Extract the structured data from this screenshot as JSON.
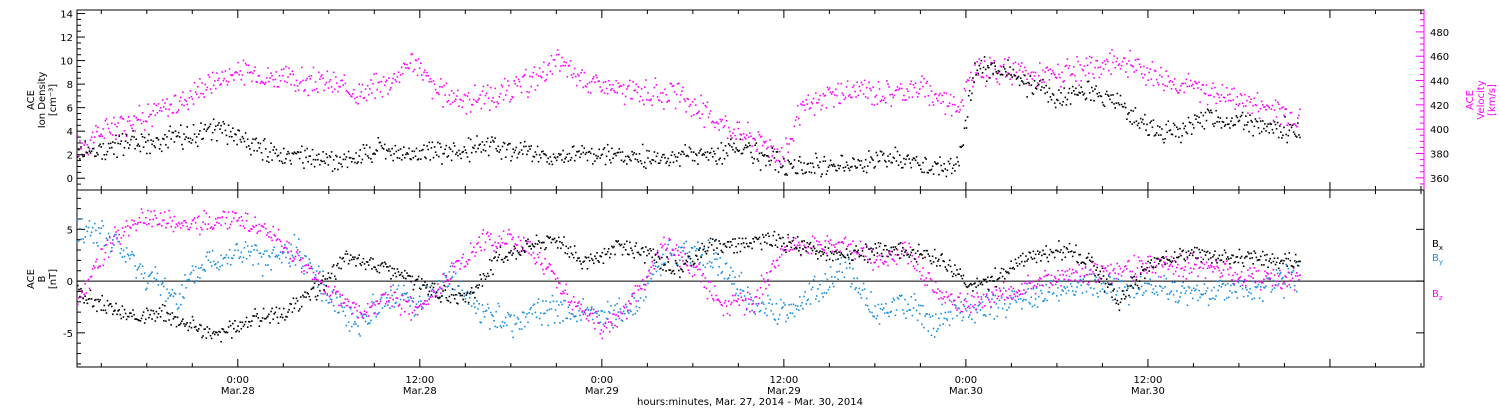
{
  "figure": {
    "xlabel": "hours:minutes, Mar. 27, 2014 - Mar. 30, 2014"
  },
  "colors": {
    "magenta": "#ff00ff",
    "blue": "#1a8fe0",
    "black": "#000000"
  },
  "chart_data": [
    {
      "type": "scatter",
      "panel": "top",
      "ylabel": [
        "ACE",
        "Ion Density",
        "[cm⁻³]"
      ],
      "ylim": [
        -1,
        14.3
      ],
      "yticks": [
        "0",
        "2",
        "4",
        "6",
        "8",
        "10",
        "12",
        "14"
      ],
      "y2label": [
        "ACE",
        "Velocity",
        "[km/s]"
      ],
      "y2lim": [
        350,
        498
      ],
      "y2ticks": [
        "360",
        "380",
        "400",
        "420",
        "440",
        "460",
        "480"
      ],
      "xlim_hours": [
        -10.6,
        78.2
      ],
      "xticks": [
        {
          "h": 0,
          "time": "0:00",
          "date": "Mar.28"
        },
        {
          "h": 12,
          "time": "12:00",
          "date": "Mar.28"
        },
        {
          "h": 24,
          "time": "0:00",
          "date": "Mar.29"
        },
        {
          "h": 36,
          "time": "12:00",
          "date": "Mar.29"
        },
        {
          "h": 48,
          "time": "0:00",
          "date": "Mar.30"
        },
        {
          "h": 60,
          "time": "12:00",
          "date": "Mar.30"
        }
      ],
      "series": [
        {
          "name": "Ion Density",
          "axis": "left",
          "color": "#000000",
          "x": [
            -10.6,
            -9,
            -7,
            -5,
            -3,
            -1.5,
            0,
            1.5,
            3,
            5,
            7,
            9,
            11,
            13,
            15,
            17,
            19,
            21,
            23,
            25,
            27,
            29,
            31,
            33,
            35,
            37,
            39,
            41,
            43,
            45,
            46.5,
            47.5,
            48.5,
            50,
            52,
            54,
            55.5,
            57,
            58,
            60,
            62,
            64,
            66,
            68,
            70
          ],
          "y": [
            2.2,
            2.6,
            3,
            3.2,
            3.8,
            4.3,
            3.5,
            2.4,
            2.1,
            1.6,
            1.6,
            2.4,
            2.1,
            2.3,
            2.6,
            2.7,
            2.2,
            1.8,
            2.3,
            2,
            1.8,
            1.8,
            2.2,
            2.5,
            1.6,
            1.2,
            1.1,
            1.4,
            1.8,
            1.2,
            0.9,
            1.4,
            9,
            9.5,
            8,
            7,
            7.5,
            7.2,
            6.5,
            4.3,
            4.1,
            5.5,
            4.8,
            4.2,
            4.2
          ]
        },
        {
          "name": "Velocity",
          "axis": "right",
          "color": "#ff00ff",
          "x": [
            -10.6,
            -9.5,
            -8,
            -6,
            -4,
            -2,
            0,
            2,
            4,
            6,
            8,
            10,
            11.5,
            13,
            15,
            17,
            19,
            21,
            23,
            25,
            27,
            29,
            31,
            33,
            35,
            36,
            37,
            39,
            41,
            43,
            45,
            46.5,
            47.5,
            48.5,
            50,
            52,
            54,
            56,
            58,
            60,
            62,
            64,
            66,
            68,
            70
          ],
          "y": [
            385,
            395,
            405,
            412,
            422,
            438,
            448,
            444,
            440,
            438,
            430,
            440,
            458,
            432,
            425,
            428,
            438,
            455,
            440,
            432,
            430,
            428,
            412,
            398,
            388,
            378,
            415,
            428,
            432,
            430,
            435,
            425,
            420,
            448,
            450,
            445,
            445,
            448,
            458,
            448,
            438,
            432,
            425,
            418,
            412
          ]
        }
      ]
    },
    {
      "type": "scatter",
      "panel": "bottom",
      "ylabel": [
        "ACE",
        "B",
        "[nT]"
      ],
      "ylim": [
        -8.3,
        8.8
      ],
      "yticks": [
        "-5",
        "0",
        "5"
      ],
      "xlim_hours": [
        -10.6,
        78.2
      ],
      "series": [
        {
          "name": "B",
          "subscript": "x",
          "color": "#000000",
          "x": [
            -10.6,
            -9,
            -7,
            -5,
            -3,
            -1.5,
            0,
            1,
            3,
            5,
            7,
            9,
            11,
            13,
            15,
            17,
            19,
            21,
            23,
            25,
            27,
            29,
            31,
            33,
            35,
            37,
            39,
            41,
            43,
            45,
            47,
            48.5,
            50,
            52,
            54,
            56,
            58,
            60,
            62,
            64,
            66,
            68,
            70
          ],
          "y": [
            -1,
            -2.2,
            -3.5,
            -3,
            -4.2,
            -5.2,
            -4.2,
            -3.5,
            -3,
            -1,
            2.2,
            1.8,
            0.5,
            -1,
            -2,
            2.2,
            3.5,
            4.2,
            1.5,
            3.5,
            2.8,
            1.2,
            3.5,
            3.8,
            4,
            3.5,
            2.5,
            2.6,
            3.2,
            2.8,
            1.5,
            -0.5,
            0.5,
            2.5,
            3,
            2.5,
            -2,
            1.5,
            2.8,
            2.6,
            2.2,
            2.2,
            2
          ]
        },
        {
          "name": "B",
          "subscript": "y",
          "color": "#1a8fe0",
          "x": [
            -10.6,
            -9.5,
            -8,
            -6,
            -4,
            -2,
            0,
            2,
            4,
            6,
            8,
            10,
            12,
            14,
            16,
            18,
            20,
            22,
            24,
            26,
            28,
            30,
            32,
            34,
            36,
            38,
            40,
            42,
            44,
            46,
            48,
            50,
            52,
            54,
            56,
            58,
            60,
            62,
            64,
            66,
            68,
            70
          ],
          "y": [
            4.8,
            5,
            3.5,
            0.5,
            -1.5,
            2,
            2.8,
            2,
            3,
            -1.5,
            -4,
            -1.2,
            -2,
            0.5,
            -3,
            -4.2,
            -2.5,
            -3,
            -3.5,
            -2.5,
            2.5,
            3,
            1.5,
            -2.5,
            -3,
            -1,
            1.5,
            -3,
            -2,
            -4,
            -2.5,
            -2.2,
            -1.5,
            -0.8,
            -0.2,
            -0.7,
            -0.8,
            -1.2,
            -1.1,
            -0.6,
            -0.4,
            0.8
          ]
        },
        {
          "name": "B",
          "subscript": "z",
          "color": "#ff00ff",
          "x": [
            -10.6,
            -9.5,
            -8,
            -6,
            -4,
            -2,
            0,
            2,
            4,
            6,
            8,
            10,
            12,
            14,
            16,
            18,
            20,
            22,
            24,
            26,
            28,
            30,
            32,
            34,
            36,
            38,
            40,
            42,
            44,
            46,
            48,
            50,
            52,
            54,
            56,
            58,
            60,
            62,
            64,
            66,
            68,
            70
          ],
          "y": [
            -2,
            1.5,
            4.5,
            6.3,
            5.5,
            5.8,
            6,
            4.5,
            2,
            -1,
            -3,
            -1.5,
            -3,
            1,
            4,
            4.2,
            2,
            -2,
            -4.5,
            -2,
            3.5,
            1.5,
            -2.5,
            -2,
            3.5,
            3.5,
            3.5,
            2,
            3,
            -1,
            -2.2,
            -1.2,
            -0.5,
            0.5,
            0.8,
            1.2,
            1.5,
            1.6,
            1.4,
            0.7,
            0.3,
            0.2
          ]
        }
      ]
    }
  ]
}
